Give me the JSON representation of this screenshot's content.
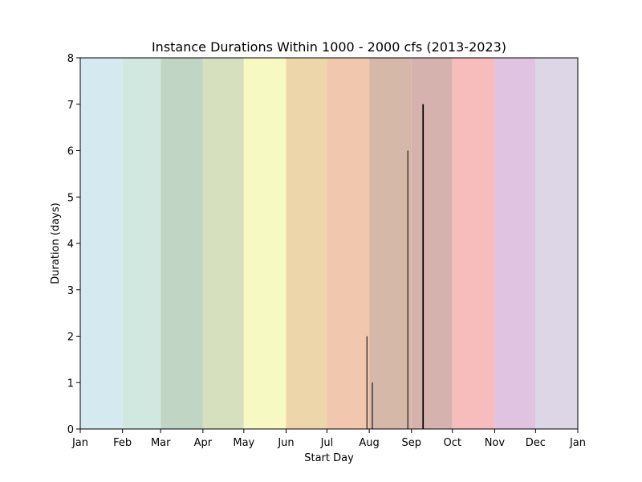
{
  "chart_data": {
    "type": "bar",
    "title": "Instance Durations Within 1000 - 2000 cfs (2013-2023)",
    "xlabel": "Start Day",
    "ylabel": "Duration (days)",
    "x_axis": "day of year",
    "xlim": [
      1,
      366
    ],
    "ylim": [
      0,
      8
    ],
    "y_ticks": [
      0,
      1,
      2,
      3,
      4,
      5,
      6,
      7,
      8
    ],
    "x_ticks": [
      {
        "label": "Jan",
        "day": 1
      },
      {
        "label": "Feb",
        "day": 32
      },
      {
        "label": "Mar",
        "day": 60
      },
      {
        "label": "Apr",
        "day": 91
      },
      {
        "label": "May",
        "day": 121
      },
      {
        "label": "Jun",
        "day": 152
      },
      {
        "label": "Jul",
        "day": 182
      },
      {
        "label": "Aug",
        "day": 213
      },
      {
        "label": "Sep",
        "day": 244
      },
      {
        "label": "Oct",
        "day": 274
      },
      {
        "label": "Nov",
        "day": 305
      },
      {
        "label": "Dec",
        "day": 335
      },
      {
        "label": "Jan",
        "day": 366
      }
    ],
    "month_bands": [
      {
        "month": "Jan",
        "start": 1,
        "end": 32,
        "color": "#d5eaf0"
      },
      {
        "month": "Feb",
        "start": 32,
        "end": 60,
        "color": "#d1e8e0"
      },
      {
        "month": "Mar",
        "start": 60,
        "end": 91,
        "color": "#c1d5c4"
      },
      {
        "month": "Apr",
        "start": 91,
        "end": 121,
        "color": "#d6dfbe"
      },
      {
        "month": "May",
        "start": 121,
        "end": 152,
        "color": "#f7f9c3"
      },
      {
        "month": "Jun",
        "start": 152,
        "end": 182,
        "color": "#edd7aa"
      },
      {
        "month": "Jul",
        "start": 182,
        "end": 213,
        "color": "#f1c7ad"
      },
      {
        "month": "Aug",
        "start": 213,
        "end": 244,
        "color": "#d6b8a8"
      },
      {
        "month": "Sep",
        "start": 244,
        "end": 274,
        "color": "#d6b2af"
      },
      {
        "month": "Oct",
        "start": 274,
        "end": 305,
        "color": "#f6bdbc"
      },
      {
        "month": "Nov",
        "start": 305,
        "end": 335,
        "color": "#dfc3e1"
      },
      {
        "month": "Dec",
        "start": 335,
        "end": 366,
        "color": "#dcd6e6"
      }
    ],
    "bar_color": "#000000",
    "points": [
      {
        "start_day": 211,
        "duration": 2,
        "width_days": 0.6
      },
      {
        "start_day": 215,
        "duration": 1,
        "width_days": 0.6
      },
      {
        "start_day": 241,
        "duration": 6,
        "width_days": 0.6
      },
      {
        "start_day": 252,
        "duration": 7,
        "width_days": 1.0
      }
    ]
  }
}
